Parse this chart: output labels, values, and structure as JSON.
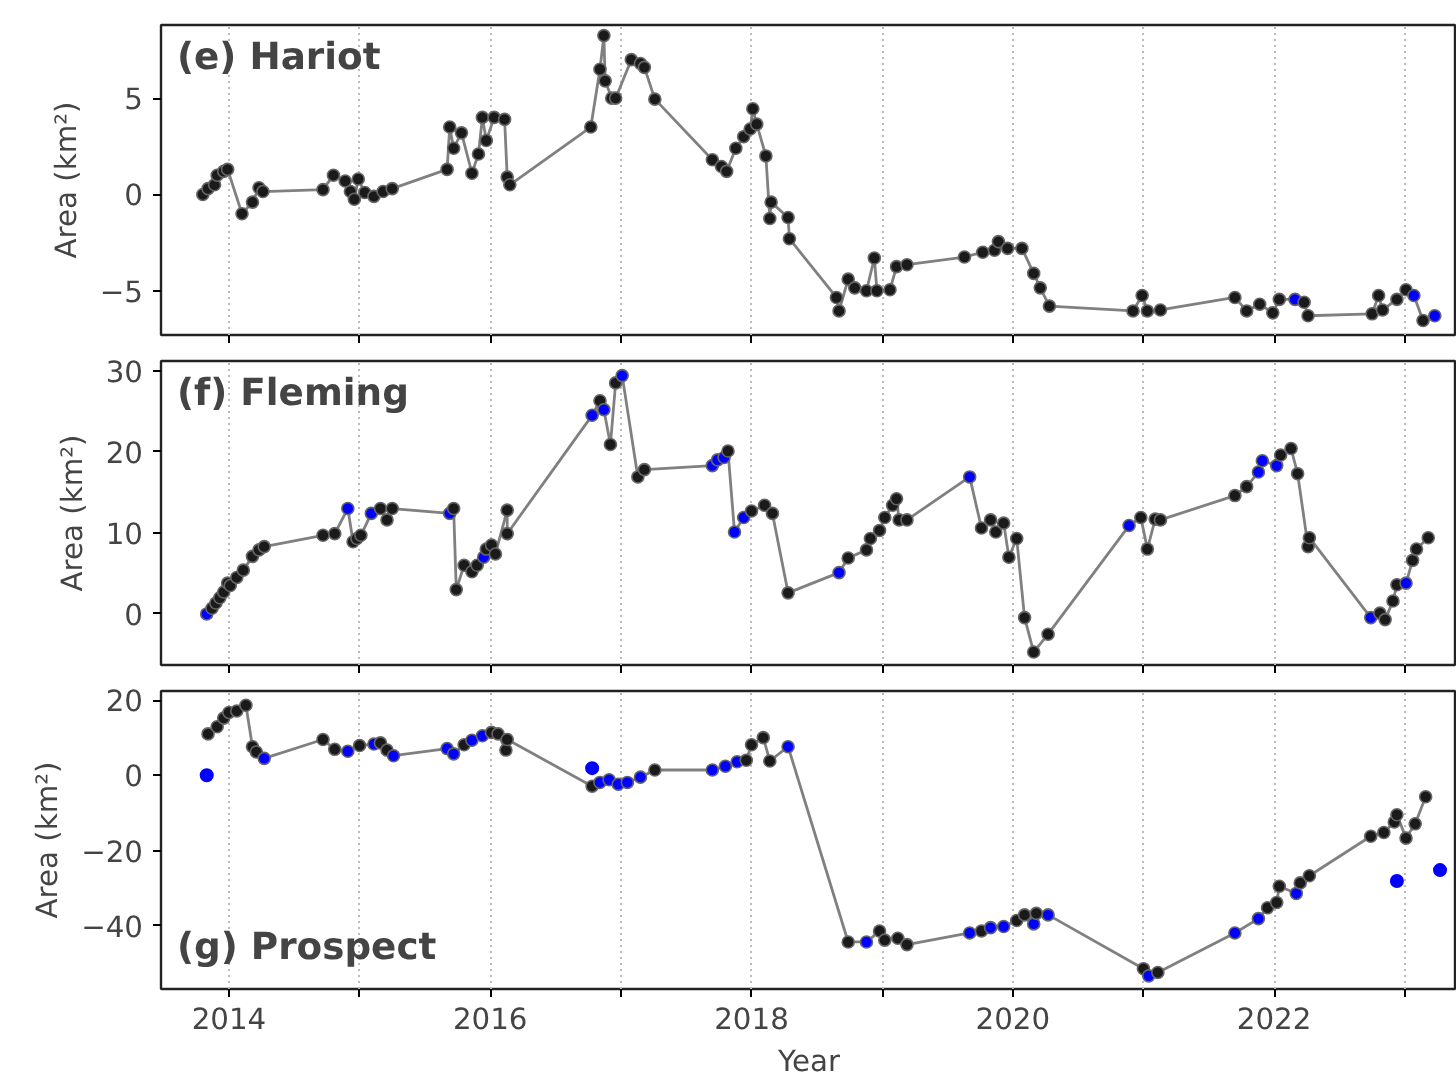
{
  "chart_data": [
    {
      "type": "line",
      "title": "(e) Hariot",
      "ylabel": "Area (km²)",
      "xlim": [
        2013.48,
        2023.4
      ],
      "ylim": [
        -7.3,
        8.8
      ],
      "xticks": [
        2014,
        {
          "value": 2015,
          "label": null
        },
        2016,
        {
          "value": 2017,
          "label": null
        },
        2018,
        {
          "value": 2019,
          "label": null
        },
        2020,
        {
          "value": 2021,
          "label": null
        },
        2022,
        {
          "value": 2023,
          "label": null
        }
      ],
      "yticks": [
        -5,
        0,
        5
      ],
      "grid": "x",
      "tick_labels": "y",
      "marker": "circle",
      "series": [
        {
          "color": "#808080",
          "x": [
            2013.8,
            2013.84,
            2013.89,
            2013.91,
            2013.96,
            2013.99,
            2014.1,
            2014.18,
            2014.23,
            2014.26,
            2014.72,
            2014.8,
            2014.89,
            2014.93,
            2014.96,
            2014.99,
            2015.04,
            2015.11,
            2015.18,
            2015.25,
            2015.67,
            2015.69,
            2015.72,
            2015.78,
            2015.86,
            2015.91,
            2015.94,
            2015.97,
            2016.03,
            2016.11,
            2016.13,
            2016.15,
            2016.77,
            2016.84,
            2016.87,
            2016.88,
            2016.93,
            2016.96,
            2017.08,
            2017.15,
            2017.18,
            2017.26,
            2017.7,
            2017.77,
            2017.81,
            2017.88,
            2017.94,
            2017.99,
            2018.01,
            2018.04,
            2018.11,
            2018.14,
            2018.15,
            2018.28,
            2018.29,
            2018.65,
            2018.67,
            2018.74,
            2018.79,
            2018.88,
            2018.94,
            2018.96,
            2019.06,
            2019.11,
            2019.19,
            2019.63,
            2019.77,
            2019.86,
            2019.89,
            2019.96,
            2020.07,
            2020.16,
            2020.21,
            2020.28,
            2020.92,
            2020.99,
            2021.03,
            2021.13,
            2021.7,
            2021.79,
            2021.89,
            2021.99,
            2022.04,
            2022.16,
            2022.23,
            2022.26,
            2022.75,
            2022.8,
            2022.83,
            2022.94,
            2023.01,
            2023.07,
            2023.14,
            2023.23
          ],
          "values": [
            0,
            0.3,
            0.5,
            1.0,
            1.2,
            1.3,
            -1.0,
            -0.4,
            0.35,
            0.15,
            0.25,
            1.0,
            0.7,
            0.15,
            -0.25,
            0.8,
            0.1,
            -0.1,
            0.15,
            0.3,
            1.3,
            3.5,
            2.4,
            3.2,
            1.1,
            2.1,
            4.0,
            2.8,
            4.0,
            3.9,
            0.9,
            0.5,
            3.5,
            6.5,
            8.25,
            5.9,
            5.0,
            5.0,
            7.0,
            6.8,
            6.6,
            4.95,
            1.8,
            1.45,
            1.2,
            2.4,
            3.0,
            3.4,
            4.45,
            3.65,
            2.0,
            -1.25,
            -0.4,
            -1.2,
            -2.3,
            -5.35,
            -6.05,
            -4.4,
            -4.85,
            -5.0,
            -3.3,
            -5.0,
            -4.95,
            -3.75,
            -3.65,
            -3.25,
            -3.0,
            -2.9,
            -2.45,
            -2.8,
            -2.8,
            -4.1,
            -4.85,
            -5.8,
            -6.05,
            -5.25,
            -6.05,
            -6.0,
            -5.35,
            -6.05,
            -5.7,
            -6.15,
            -5.45,
            -5.45,
            -5.6,
            -6.3,
            -6.2,
            -5.25,
            -6.0,
            -5.45,
            -4.95,
            -5.25,
            -6.55,
            -6.3
          ],
          "colors": [
            "#1a1a1a",
            "#1a1a1a",
            "#1a1a1a",
            "#1a1a1a",
            "#1a1a1a",
            "#1a1a1a",
            "#1a1a1a",
            "#1a1a1a",
            "#1a1a1a",
            "#1a1a1a",
            "#1a1a1a",
            "#1a1a1a",
            "#1a1a1a",
            "#1a1a1a",
            "#1a1a1a",
            "#1a1a1a",
            "#1a1a1a",
            "#1a1a1a",
            "#1a1a1a",
            "#1a1a1a",
            "#1a1a1a",
            "#1a1a1a",
            "#1a1a1a",
            "#1a1a1a",
            "#1a1a1a",
            "#1a1a1a",
            "#1a1a1a",
            "#1a1a1a",
            "#1a1a1a",
            "#1a1a1a",
            "#1a1a1a",
            "#1a1a1a",
            "#1a1a1a",
            "#1a1a1a",
            "#1a1a1a",
            "#1a1a1a",
            "#1a1a1a",
            "#1a1a1a",
            "#1a1a1a",
            "#1a1a1a",
            "#1a1a1a",
            "#1a1a1a",
            "#1a1a1a",
            "#1a1a1a",
            "#1a1a1a",
            "#1a1a1a",
            "#1a1a1a",
            "#1a1a1a",
            "#1a1a1a",
            "#1a1a1a",
            "#1a1a1a",
            "#1a1a1a",
            "#1a1a1a",
            "#1a1a1a",
            "#1a1a1a",
            "#1a1a1a",
            "#1a1a1a",
            "#1a1a1a",
            "#1a1a1a",
            "#1a1a1a",
            "#1a1a1a",
            "#1a1a1a",
            "#1a1a1a",
            "#1a1a1a",
            "#1a1a1a",
            "#1a1a1a",
            "#1a1a1a",
            "#1a1a1a",
            "#1a1a1a",
            "#1a1a1a",
            "#1a1a1a",
            "#1a1a1a",
            "#1a1a1a",
            "#1a1a1a",
            "#1a1a1a",
            "#1a1a1a",
            "#1a1a1a",
            "#1a1a1a",
            "#1a1a1a",
            "#1a1a1a",
            "#1a1a1a",
            "#1a1a1a",
            "#1a1a1a",
            "#0000ff",
            "#1a1a1a",
            "#1a1a1a",
            "#1a1a1a",
            "#1a1a1a",
            "#1a1a1a",
            "#1a1a1a",
            "#1a1a1a",
            "#0000ff",
            "#1a1a1a",
            "#0000ff"
          ]
        }
      ]
    },
    {
      "type": "line",
      "title": "(f) Fleming",
      "ylabel": "Area (km²)",
      "xlim": [
        2013.48,
        2023.4
      ],
      "ylim": [
        -6.3,
        31.2
      ],
      "xticks": [
        2014,
        {
          "value": 2015,
          "label": null
        },
        2016,
        {
          "value": 2017,
          "label": null
        },
        2018,
        {
          "value": 2019,
          "label": null
        },
        2020,
        {
          "value": 2021,
          "label": null
        },
        2022,
        {
          "value": 2023,
          "label": null
        }
      ],
      "yticks": [
        0,
        10,
        20,
        30
      ],
      "grid": "x",
      "tick_labels": "y",
      "marker": "circle",
      "series": [
        {
          "color": "#808080",
          "x": [
            2013.83,
            2013.87,
            2013.9,
            2013.93,
            2013.96,
            2013.99,
            2014.01,
            2014.06,
            2014.11,
            2014.18,
            2014.23,
            2014.27,
            2014.72,
            2014.81,
            2014.91,
            2014.95,
            2014.98,
            2015.01,
            2015.09,
            2015.16,
            2015.21,
            2015.25,
            2015.69,
            2015.72,
            2015.74,
            2015.8,
            2015.86,
            2015.9,
            2015.95,
            2015.97,
            2016.01,
            2016.04,
            2016.13,
            2016.13,
            2016.78,
            2016.84,
            2016.87,
            2016.92,
            2016.96,
            2017.01,
            2017.13,
            2017.18,
            2017.7,
            2017.74,
            2017.79,
            2017.82,
            2017.87,
            2017.94,
            2018.0,
            2018.1,
            2018.16,
            2018.28,
            2018.67,
            2018.74,
            2018.88,
            2018.91,
            2018.98,
            2019.02,
            2019.08,
            2019.11,
            2019.13,
            2019.19,
            2019.67,
            2019.76,
            2019.83,
            2019.87,
            2019.93,
            2019.97,
            2020.03,
            2020.09,
            2020.16,
            2020.27,
            2020.89,
            2020.98,
            2021.03,
            2021.09,
            2021.13,
            2021.7,
            2021.79,
            2021.88,
            2021.91,
            2022.02,
            2022.05,
            2022.13,
            2022.18,
            2022.26,
            2022.27,
            2022.74,
            2022.81,
            2022.85,
            2022.91,
            2022.94,
            2023.01,
            2023.06,
            2023.09,
            2023.18
          ],
          "values": [
            0,
            0.7,
            1.35,
            2.0,
            2.7,
            3.8,
            3.5,
            4.5,
            5.4,
            7.1,
            7.9,
            8.3,
            9.7,
            9.9,
            13.0,
            8.9,
            9.3,
            9.7,
            12.4,
            13.0,
            11.6,
            13.0,
            12.4,
            13.0,
            3.0,
            6.0,
            5.2,
            6.0,
            7.0,
            8.0,
            8.5,
            7.4,
            12.8,
            9.9,
            24.5,
            26.3,
            25.2,
            20.9,
            28.5,
            29.4,
            16.9,
            17.8,
            18.3,
            19.0,
            19.3,
            20.1,
            10.1,
            11.9,
            12.7,
            13.4,
            12.4,
            2.6,
            5.1,
            6.9,
            7.9,
            9.3,
            10.3,
            11.9,
            13.4,
            14.2,
            11.6,
            11.6,
            16.9,
            10.6,
            11.6,
            10.1,
            11.2,
            7.0,
            9.3,
            -0.45,
            -4.7,
            -2.5,
            10.9,
            11.9,
            8.0,
            11.7,
            11.6,
            14.6,
            15.7,
            17.5,
            18.9,
            18.3,
            19.6,
            20.4,
            17.3,
            8.3,
            9.4,
            -0.45,
            0.1,
            -0.7,
            1.6,
            3.6,
            3.8,
            6.6,
            8.0,
            9.4
          ],
          "colors": [
            "#0000ff",
            "#1a1a1a",
            "#1a1a1a",
            "#1a1a1a",
            "#1a1a1a",
            "#1a1a1a",
            "#1a1a1a",
            "#1a1a1a",
            "#1a1a1a",
            "#1a1a1a",
            "#1a1a1a",
            "#1a1a1a",
            "#1a1a1a",
            "#1a1a1a",
            "#0000ff",
            "#1a1a1a",
            "#1a1a1a",
            "#1a1a1a",
            "#0000ff",
            "#1a1a1a",
            "#1a1a1a",
            "#1a1a1a",
            "#0000ff",
            "#1a1a1a",
            "#1a1a1a",
            "#1a1a1a",
            "#1a1a1a",
            "#1a1a1a",
            "#0000ff",
            "#1a1a1a",
            "#1a1a1a",
            "#1a1a1a",
            "#1a1a1a",
            "#1a1a1a",
            "#0000ff",
            "#1a1a1a",
            "#0000ff",
            "#1a1a1a",
            "#1a1a1a",
            "#0000ff",
            "#1a1a1a",
            "#1a1a1a",
            "#0000ff",
            "#0000ff",
            "#0000ff",
            "#1a1a1a",
            "#0000ff",
            "#0000ff",
            "#1a1a1a",
            "#1a1a1a",
            "#1a1a1a",
            "#1a1a1a",
            "#0000ff",
            "#1a1a1a",
            "#1a1a1a",
            "#1a1a1a",
            "#1a1a1a",
            "#1a1a1a",
            "#1a1a1a",
            "#1a1a1a",
            "#1a1a1a",
            "#1a1a1a",
            "#0000ff",
            "#1a1a1a",
            "#1a1a1a",
            "#1a1a1a",
            "#1a1a1a",
            "#1a1a1a",
            "#1a1a1a",
            "#1a1a1a",
            "#1a1a1a",
            "#1a1a1a",
            "#0000ff",
            "#1a1a1a",
            "#1a1a1a",
            "#1a1a1a",
            "#1a1a1a",
            "#1a1a1a",
            "#1a1a1a",
            "#0000ff",
            "#0000ff",
            "#0000ff",
            "#1a1a1a",
            "#1a1a1a",
            "#1a1a1a",
            "#1a1a1a",
            "#1a1a1a",
            "#0000ff",
            "#1a1a1a",
            "#1a1a1a",
            "#1a1a1a",
            "#1a1a1a",
            "#0000ff",
            "#1a1a1a",
            "#1a1a1a",
            "#1a1a1a"
          ]
        }
      ]
    },
    {
      "type": "line",
      "title": "(g) Prospect",
      "xlabel": "Year",
      "ylabel": "Area (km²)",
      "xlim": [
        2013.48,
        2023.4
      ],
      "ylim": [
        -56.8,
        22.4
      ],
      "xticks": [
        2014,
        {
          "value": 2015,
          "label": null
        },
        2016,
        {
          "value": 2017,
          "label": null
        },
        2018,
        {
          "value": 2019,
          "label": null
        },
        2020,
        {
          "value": 2021,
          "label": null
        },
        2022,
        {
          "value": 2023,
          "label": null
        }
      ],
      "yticks": [
        -40,
        -20,
        0,
        20
      ],
      "grid": "x",
      "marker": "circle",
      "series": [
        {
          "color": "#808080",
          "x": [
            2013.84,
            2013.91,
            2013.96,
            2014.0,
            2014.06,
            2014.13,
            2014.18,
            2014.21,
            2014.27,
            2014.72,
            2014.81,
            2014.91,
            2015.0,
            2015.11,
            2015.16,
            2015.21,
            2015.26,
            2015.67,
            2015.72,
            2015.8,
            2015.86,
            2015.94,
            2016.01,
            2016.06,
            2016.12,
            2016.13,
            2016.78,
            2016.84,
            2016.91,
            2016.98,
            2017.05,
            2017.15,
            2017.26,
            2017.7,
            2017.8,
            2017.89,
            2017.96,
            2018.0,
            2018.09,
            2018.14,
            2018.28,
            2018.74,
            2018.88,
            2018.98,
            2019.02,
            2019.12,
            2019.19,
            2019.67,
            2019.76,
            2019.83,
            2019.93,
            2020.03,
            2020.09,
            2020.16,
            2020.18,
            2020.27,
            2021.0,
            2021.04,
            2021.11,
            2021.7,
            2021.88,
            2021.95,
            2022.02,
            2022.04,
            2022.17,
            2022.2,
            2022.27,
            2022.74,
            2022.84,
            2022.92,
            2022.94,
            2023.01,
            2023.08,
            2023.16
          ],
          "values": [
            11.0,
            12.9,
            15.2,
            16.7,
            17.1,
            18.6,
            7.6,
            6.2,
            4.5,
            9.5,
            6.9,
            6.4,
            7.9,
            8.3,
            8.6,
            6.7,
            5.2,
            7.1,
            5.7,
            8.1,
            9.3,
            10.5,
            11.4,
            11.0,
            6.7,
            9.5,
            -2.9,
            -1.9,
            -1.2,
            -2.4,
            -1.9,
            -0.5,
            1.4,
            1.4,
            2.4,
            3.6,
            4.0,
            8.1,
            10.0,
            3.8,
            7.6,
            -44.3,
            -44.3,
            -41.4,
            -43.8,
            -43.3,
            -45.0,
            -41.9,
            -41.4,
            -40.5,
            -40.2,
            -38.6,
            -37.1,
            -39.5,
            -36.7,
            -37.1,
            -51.4,
            -53.3,
            -52.4,
            -41.9,
            -38.1,
            -35.2,
            -33.8,
            -29.5,
            -31.4,
            -28.6,
            -26.7,
            -16.2,
            -15.2,
            -12.4,
            -10.5,
            -16.7,
            -12.9,
            -5.7
          ],
          "colors": [
            "#1a1a1a",
            "#1a1a1a",
            "#1a1a1a",
            "#1a1a1a",
            "#1a1a1a",
            "#1a1a1a",
            "#1a1a1a",
            "#1a1a1a",
            "#0000ff",
            "#1a1a1a",
            "#1a1a1a",
            "#0000ff",
            "#1a1a1a",
            "#0000ff",
            "#1a1a1a",
            "#1a1a1a",
            "#0000ff",
            "#0000ff",
            "#0000ff",
            "#1a1a1a",
            "#0000ff",
            "#0000ff",
            "#1a1a1a",
            "#1a1a1a",
            "#1a1a1a",
            "#1a1a1a",
            "#1a1a1a",
            "#0000ff",
            "#0000ff",
            "#0000ff",
            "#0000ff",
            "#0000ff",
            "#1a1a1a",
            "#0000ff",
            "#0000ff",
            "#0000ff",
            "#1a1a1a",
            "#1a1a1a",
            "#1a1a1a",
            "#1a1a1a",
            "#0000ff",
            "#1a1a1a",
            "#0000ff",
            "#1a1a1a",
            "#1a1a1a",
            "#1a1a1a",
            "#1a1a1a",
            "#0000ff",
            "#1a1a1a",
            "#0000ff",
            "#0000ff",
            "#1a1a1a",
            "#1a1a1a",
            "#0000ff",
            "#1a1a1a",
            "#0000ff",
            "#1a1a1a",
            "#0000ff",
            "#1a1a1a",
            "#0000ff",
            "#0000ff",
            "#1a1a1a",
            "#1a1a1a",
            "#1a1a1a",
            "#0000ff",
            "#1a1a1a",
            "#1a1a1a",
            "#1a1a1a",
            "#1a1a1a",
            "#1a1a1a",
            "#1a1a1a",
            "#1a1a1a",
            "#1a1a1a",
            "#1a1a1a"
          ]
        },
        {
          "type": "scatter",
          "color": "#0000ff",
          "x": [
            2013.83,
            2016.78,
            2022.94,
            2023.27
          ],
          "values": [
            0,
            1.9,
            -28.1,
            -25.2
          ]
        }
      ]
    }
  ]
}
